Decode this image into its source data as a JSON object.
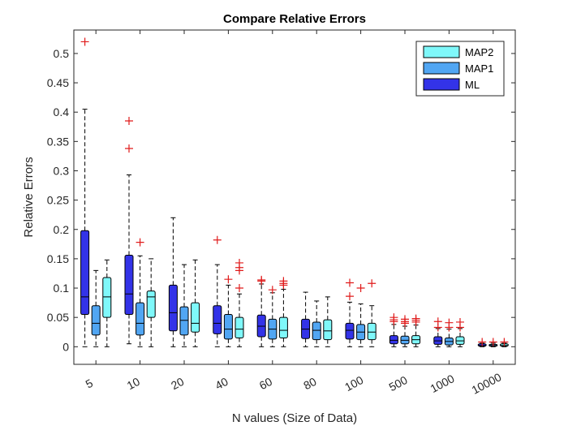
{
  "chart_data": {
    "type": "box",
    "title": "Compare Relative Errors",
    "xlabel": "N values (Size of Data)",
    "ylabel": "Relative Errors",
    "ylim": [
      -0.03,
      0.54
    ],
    "yticks": [
      "0",
      "0.05",
      "0.1",
      "0.15",
      "0.2",
      "0.25",
      "0.3",
      "0.35",
      "0.4",
      "0.45",
      "0.5"
    ],
    "categories": [
      "5",
      "10",
      "20",
      "40",
      "60",
      "80",
      "100",
      "500",
      "1000",
      "10000"
    ],
    "legend": {
      "placement": "top-right",
      "entries": [
        {
          "label": "MAP2",
          "color": "#7ff8fa"
        },
        {
          "label": "MAP1",
          "color": "#51a6f3"
        },
        {
          "label": "ML",
          "color": "#3333e8"
        }
      ]
    },
    "series": [
      {
        "color": "#3333e8",
        "boxes": [
          {
            "q1": 0.055,
            "median": 0.085,
            "q3": 0.198,
            "whisker_low": 0.0,
            "whisker_high": 0.405,
            "outliers": [
              0.52
            ]
          },
          {
            "q1": 0.055,
            "median": 0.09,
            "q3": 0.156,
            "whisker_low": 0.005,
            "whisker_high": 0.293,
            "outliers": [
              0.338,
              0.385
            ]
          },
          {
            "q1": 0.027,
            "median": 0.058,
            "q3": 0.105,
            "whisker_low": 0.0,
            "whisker_high": 0.22,
            "outliers": []
          },
          {
            "q1": 0.022,
            "median": 0.04,
            "q3": 0.07,
            "whisker_low": 0.0,
            "whisker_high": 0.14,
            "outliers": [
              0.182
            ]
          },
          {
            "q1": 0.017,
            "median": 0.035,
            "q3": 0.054,
            "whisker_low": 0.0,
            "whisker_high": 0.107,
            "outliers": [
              0.112,
              0.114
            ]
          },
          {
            "q1": 0.014,
            "median": 0.03,
            "q3": 0.047,
            "whisker_low": 0.0,
            "whisker_high": 0.093,
            "outliers": []
          },
          {
            "q1": 0.013,
            "median": 0.028,
            "q3": 0.04,
            "whisker_low": 0.0,
            "whisker_high": 0.076,
            "outliers": [
              0.086,
              0.109
            ]
          },
          {
            "q1": 0.005,
            "median": 0.011,
            "q3": 0.019,
            "whisker_low": 0.0,
            "whisker_high": 0.038,
            "outliers": [
              0.043,
              0.046,
              0.05
            ]
          },
          {
            "q1": 0.004,
            "median": 0.01,
            "q3": 0.017,
            "whisker_low": 0.0,
            "whisker_high": 0.031,
            "outliers": [
              0.033,
              0.043
            ]
          },
          {
            "q1": 0.001,
            "median": 0.002,
            "q3": 0.005,
            "whisker_low": 0.0,
            "whisker_high": 0.006,
            "outliers": [
              0.008
            ]
          }
        ]
      },
      {
        "color": "#51a6f3",
        "boxes": [
          {
            "q1": 0.02,
            "median": 0.04,
            "q3": 0.07,
            "whisker_low": 0.0,
            "whisker_high": 0.13,
            "outliers": []
          },
          {
            "q1": 0.02,
            "median": 0.04,
            "q3": 0.075,
            "whisker_low": 0.0,
            "whisker_high": 0.155,
            "outliers": [
              0.178
            ]
          },
          {
            "q1": 0.02,
            "median": 0.045,
            "q3": 0.068,
            "whisker_low": 0.0,
            "whisker_high": 0.14,
            "outliers": []
          },
          {
            "q1": 0.013,
            "median": 0.03,
            "q3": 0.055,
            "whisker_low": 0.0,
            "whisker_high": 0.105,
            "outliers": [
              0.115
            ]
          },
          {
            "q1": 0.013,
            "median": 0.03,
            "q3": 0.047,
            "whisker_low": 0.0,
            "whisker_high": 0.092,
            "outliers": [
              0.097
            ]
          },
          {
            "q1": 0.012,
            "median": 0.028,
            "q3": 0.042,
            "whisker_low": 0.0,
            "whisker_high": 0.078,
            "outliers": []
          },
          {
            "q1": 0.012,
            "median": 0.025,
            "q3": 0.038,
            "whisker_low": 0.0,
            "whisker_high": 0.073,
            "outliers": [
              0.1
            ]
          },
          {
            "q1": 0.005,
            "median": 0.011,
            "q3": 0.018,
            "whisker_low": 0.0,
            "whisker_high": 0.035,
            "outliers": [
              0.04,
              0.043,
              0.047
            ]
          },
          {
            "q1": 0.003,
            "median": 0.009,
            "q3": 0.015,
            "whisker_low": 0.0,
            "whisker_high": 0.03,
            "outliers": [
              0.033,
              0.041
            ]
          },
          {
            "q1": 0.001,
            "median": 0.002,
            "q3": 0.004,
            "whisker_low": 0.0,
            "whisker_high": 0.006,
            "outliers": [
              0.008
            ]
          }
        ]
      },
      {
        "color": "#7ff8fa",
        "boxes": [
          {
            "q1": 0.05,
            "median": 0.085,
            "q3": 0.118,
            "whisker_low": 0.0,
            "whisker_high": 0.148,
            "outliers": []
          },
          {
            "q1": 0.05,
            "median": 0.085,
            "q3": 0.095,
            "whisker_low": 0.0,
            "whisker_high": 0.15,
            "outliers": []
          },
          {
            "q1": 0.025,
            "median": 0.04,
            "q3": 0.075,
            "whisker_low": 0.0,
            "whisker_high": 0.148,
            "outliers": []
          },
          {
            "q1": 0.015,
            "median": 0.03,
            "q3": 0.05,
            "whisker_low": 0.0,
            "whisker_high": 0.09,
            "outliers": [
              0.1,
              0.13,
              0.135,
              0.143
            ]
          },
          {
            "q1": 0.015,
            "median": 0.028,
            "q3": 0.05,
            "whisker_low": 0.0,
            "whisker_high": 0.098,
            "outliers": [
              0.105,
              0.108,
              0.112
            ]
          },
          {
            "q1": 0.012,
            "median": 0.027,
            "q3": 0.046,
            "whisker_low": 0.0,
            "whisker_high": 0.085,
            "outliers": []
          },
          {
            "q1": 0.012,
            "median": 0.025,
            "q3": 0.04,
            "whisker_low": 0.0,
            "whisker_high": 0.07,
            "outliers": [
              0.108
            ]
          },
          {
            "q1": 0.005,
            "median": 0.012,
            "q3": 0.019,
            "whisker_low": 0.0,
            "whisker_high": 0.037,
            "outliers": [
              0.042,
              0.045,
              0.048
            ]
          },
          {
            "q1": 0.004,
            "median": 0.01,
            "q3": 0.017,
            "whisker_low": 0.0,
            "whisker_high": 0.031,
            "outliers": [
              0.033,
              0.042
            ]
          },
          {
            "q1": 0.001,
            "median": 0.002,
            "q3": 0.005,
            "whisker_low": 0.0,
            "whisker_high": 0.006,
            "outliers": [
              0.008
            ]
          }
        ]
      }
    ]
  }
}
